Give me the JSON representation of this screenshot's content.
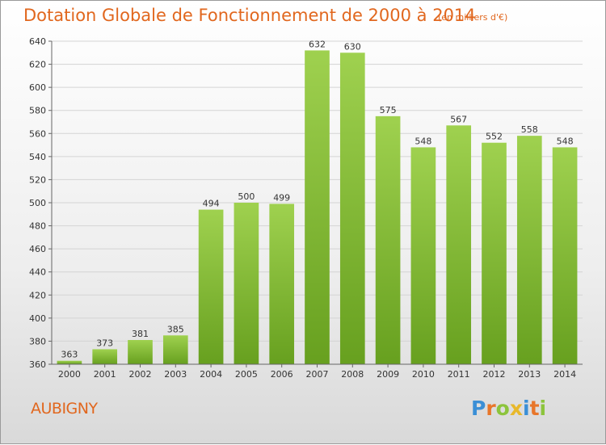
{
  "header": {
    "title": "Dotation Globale de Fonctionnement de 2000 à 2014",
    "unit": "(en milliers d'€)"
  },
  "footer": {
    "commune": "AUBIGNY",
    "logo_letters": [
      {
        "char": "P",
        "color": "#3b8fd6"
      },
      {
        "char": "r",
        "color": "#e8762a"
      },
      {
        "char": "o",
        "color": "#8cc43c"
      },
      {
        "char": "x",
        "color": "#e8b82a"
      },
      {
        "char": "i",
        "color": "#3b8fd6"
      },
      {
        "char": "t",
        "color": "#e8762a"
      },
      {
        "char": "i",
        "color": "#8cc43c"
      }
    ]
  },
  "colors": {
    "bar_top": "#9fd14f",
    "bar_bottom": "#67a01f",
    "grid": "#d4d4d4",
    "axis": "#666666",
    "title": "#e1671e"
  },
  "chart_data": {
    "type": "bar",
    "title": "Dotation Globale de Fonctionnement de 2000 à 2014",
    "subtitle": "(en milliers d'€)",
    "xlabel": "",
    "ylabel": "",
    "categories": [
      "2000",
      "2001",
      "2002",
      "2003",
      "2004",
      "2005",
      "2006",
      "2007",
      "2008",
      "2009",
      "2010",
      "2011",
      "2012",
      "2013",
      "2014"
    ],
    "values": [
      363,
      373,
      381,
      385,
      494,
      500,
      499,
      632,
      630,
      575,
      548,
      567,
      552,
      558,
      548
    ],
    "ylim": [
      360,
      640
    ],
    "yticks": [
      360,
      380,
      400,
      420,
      440,
      460,
      480,
      500,
      520,
      540,
      560,
      580,
      600,
      620,
      640
    ],
    "grid": true,
    "legend": "none"
  }
}
